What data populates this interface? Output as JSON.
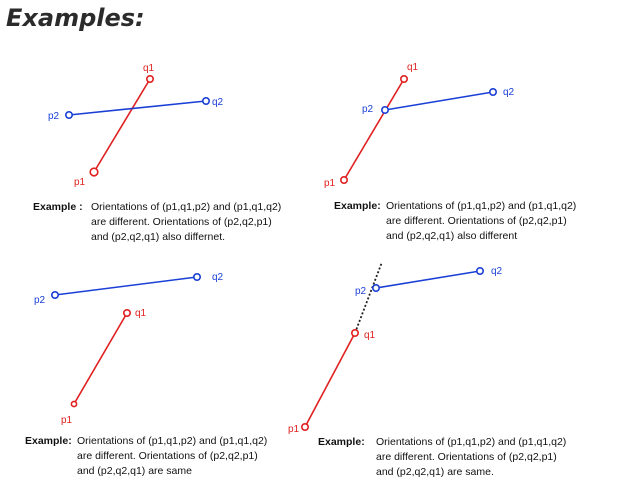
{
  "title": "Examples:",
  "colors": {
    "p_segment": "#1a3fd6",
    "q_segment": "#e02020",
    "collinear_guide": "#222222"
  },
  "panels": [
    {
      "labels": {
        "p1": "p1",
        "q1": "q1",
        "p2": "p2",
        "q2": "q2"
      },
      "caption_lead": "Example :",
      "caption_lines": [
        "Orientations of (p1,q1,p2) and (p1,q1,q2)",
        "are different. Orientations of (p2,q2,p1)",
        "and (p2,q2,q1) also differnet."
      ]
    },
    {
      "labels": {
        "p1": "p1",
        "q1": "q1",
        "p2": "p2",
        "q2": "q2"
      },
      "caption_lead": "Example:",
      "caption_lines": [
        "Orientations of (p1,q1,p2) and (p1,q1,q2)",
        "are different. Orientations of (p2,q2,p1)",
        "and (p2,q2,q1) also different"
      ]
    },
    {
      "labels": {
        "p1": "p1",
        "q1": "q1",
        "p2": "p2",
        "q2": "q2"
      },
      "caption_lead": "Example:",
      "caption_lines": [
        "Orientations of (p1,q1,p2) and (p1,q1,q2)",
        "are different. Orientations of (p2,q2,p1)",
        "and (p2,q2,q1) are same"
      ]
    },
    {
      "labels": {
        "p1": "p1",
        "q1": "q1",
        "p2": "p2",
        "q2": "q2"
      },
      "caption_lead": "Example:",
      "caption_lines": [
        "Orientations of (p1,q1,p2) and (p1,q1,q2)",
        "are different. Orientations of (p2,q2,p1)",
        "and (p2,q2,q1) are same."
      ]
    }
  ]
}
